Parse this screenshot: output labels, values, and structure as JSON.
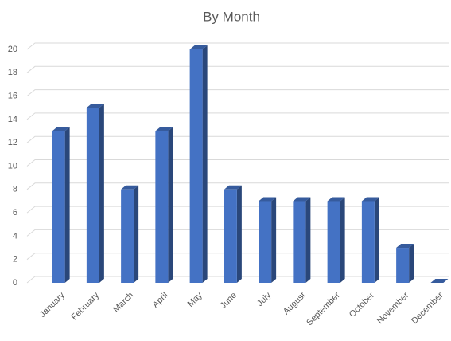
{
  "chart_data": {
    "type": "bar3d",
    "title": "By Month",
    "categories": [
      "January",
      "February",
      "March",
      "April",
      "May",
      "June",
      "July",
      "August",
      "September",
      "October",
      "November",
      "December"
    ],
    "values": [
      13,
      15,
      8,
      13,
      20,
      8,
      7,
      7,
      7,
      7,
      3,
      0
    ],
    "color": "#4472c4",
    "ylim": [
      0,
      20
    ],
    "yticks": [
      0,
      2,
      4,
      6,
      8,
      10,
      12,
      14,
      16,
      18,
      20
    ],
    "grid": true
  }
}
